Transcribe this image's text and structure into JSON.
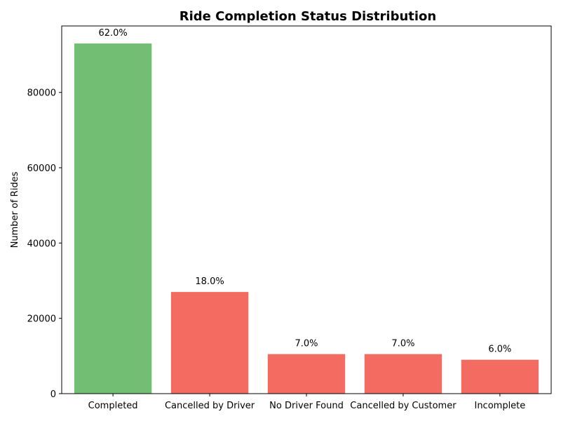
{
  "chart_data": {
    "type": "bar",
    "title": "Ride Completion Status Distribution",
    "xlabel": "",
    "ylabel": "Number of Rides",
    "categories": [
      "Completed",
      "Cancelled by Driver",
      "No Driver Found",
      "Cancelled by Customer",
      "Incomplete"
    ],
    "values": [
      93000,
      27000,
      10500,
      10500,
      9000
    ],
    "data_labels": [
      "62.0%",
      "18.0%",
      "7.0%",
      "7.0%",
      "6.0%"
    ],
    "bar_colors": [
      "#72bf73",
      "#f46b61",
      "#f46b61",
      "#f46b61",
      "#f46b61"
    ],
    "ylim": [
      0,
      97650
    ],
    "yticks": [
      0,
      20000,
      40000,
      60000,
      80000
    ],
    "ytick_labels": [
      "0",
      "20000",
      "40000",
      "60000",
      "80000"
    ],
    "grid": false,
    "legend": "none"
  }
}
